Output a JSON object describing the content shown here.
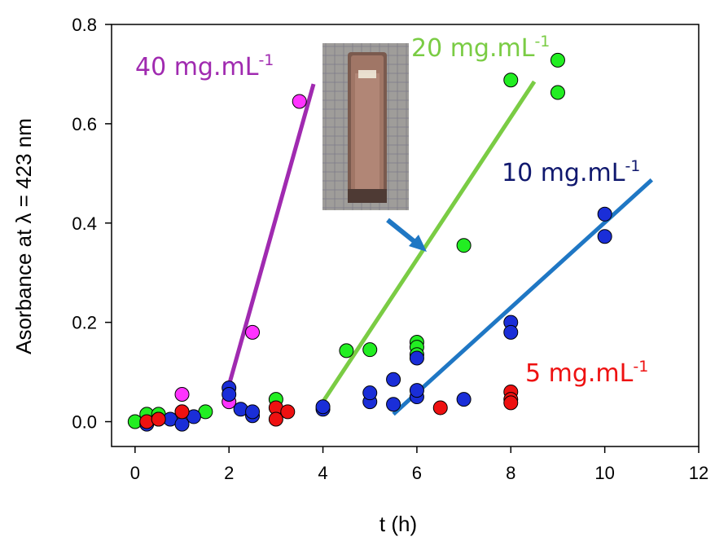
{
  "chart_data": {
    "type": "scatter",
    "xlabel": "t (h)",
    "ylabel": "Asorbance at λ = 423 nm",
    "xlim": [
      -0.5,
      12
    ],
    "ylim": [
      -0.05,
      0.8
    ],
    "x_ticks": [
      "0",
      "2",
      "4",
      "6",
      "8",
      "10",
      "12"
    ],
    "y_ticks": [
      "0.0",
      "0.2",
      "0.4",
      "0.6",
      "0.8"
    ],
    "grid": false,
    "series": [
      {
        "name": "40 mg.mL-1",
        "label_main": "40 mg.mL",
        "label_sup": "-1",
        "color": "#ff33ff",
        "line_color": "#a02ab0",
        "label_color": "#a02ab0",
        "points": [
          [
            0.25,
            0.005
          ],
          [
            1.0,
            0.055
          ],
          [
            2.0,
            0.04
          ],
          [
            2.5,
            0.18
          ],
          [
            3.5,
            0.645
          ]
        ],
        "trend": [
          [
            1.9,
            0.04
          ],
          [
            3.8,
            0.68
          ]
        ]
      },
      {
        "name": "20 mg.mL-1",
        "label_main": "20 mg.mL",
        "label_sup": "-1",
        "color": "#22ee22",
        "line_color": "#7acc44",
        "label_color": "#7acc44",
        "points": [
          [
            0.0,
            0.0
          ],
          [
            0.25,
            0.015
          ],
          [
            0.5,
            0.015
          ],
          [
            1.0,
            0.02
          ],
          [
            1.5,
            0.02
          ],
          [
            3.0,
            0.045
          ],
          [
            4.5,
            0.143
          ],
          [
            5.0,
            0.145
          ],
          [
            6.0,
            0.16
          ],
          [
            6.0,
            0.15
          ],
          [
            6.0,
            0.135
          ],
          [
            7.0,
            0.355
          ],
          [
            8.0,
            0.688
          ],
          [
            9.0,
            0.728
          ],
          [
            9.0,
            0.663
          ]
        ],
        "trend": [
          [
            4.0,
            0.04
          ],
          [
            8.5,
            0.685
          ]
        ]
      },
      {
        "name": "10 mg.mL-1",
        "label_main": "10 mg.mL",
        "label_sup": "-1",
        "color": "#1a2ed8",
        "line_color": "#1f77c4",
        "label_color": "#10186e",
        "points": [
          [
            0.25,
            -0.005
          ],
          [
            0.5,
            0.005
          ],
          [
            0.75,
            0.005
          ],
          [
            1.0,
            -0.005
          ],
          [
            1.25,
            0.01
          ],
          [
            2.0,
            0.068
          ],
          [
            2.0,
            0.055
          ],
          [
            2.25,
            0.025
          ],
          [
            2.5,
            0.012
          ],
          [
            2.5,
            0.02
          ],
          [
            4.0,
            0.025
          ],
          [
            4.0,
            0.03
          ],
          [
            5.0,
            0.04
          ],
          [
            5.0,
            0.058
          ],
          [
            5.5,
            0.035
          ],
          [
            5.5,
            0.085
          ],
          [
            6.0,
            0.05
          ],
          [
            6.0,
            0.063
          ],
          [
            6.0,
            0.128
          ],
          [
            7.0,
            0.045
          ],
          [
            8.0,
            0.2
          ],
          [
            8.0,
            0.18
          ],
          [
            10.0,
            0.418
          ],
          [
            10.0,
            0.373
          ]
        ],
        "trend": [
          [
            5.5,
            0.015
          ],
          [
            11.0,
            0.487
          ]
        ]
      },
      {
        "name": "5 mg.mL-1",
        "label_main": "5 mg.mL",
        "label_sup": "-1",
        "color": "#ee1111",
        "line_color": null,
        "label_color": "#ee1111",
        "points": [
          [
            0.25,
            0.0
          ],
          [
            0.5,
            0.005
          ],
          [
            1.0,
            0.02
          ],
          [
            3.0,
            0.028
          ],
          [
            3.0,
            0.005
          ],
          [
            3.25,
            0.02
          ],
          [
            6.5,
            0.028
          ],
          [
            8.0,
            0.06
          ],
          [
            8.0,
            0.045
          ],
          [
            8.0,
            0.038
          ]
        ],
        "trend": null
      }
    ]
  }
}
